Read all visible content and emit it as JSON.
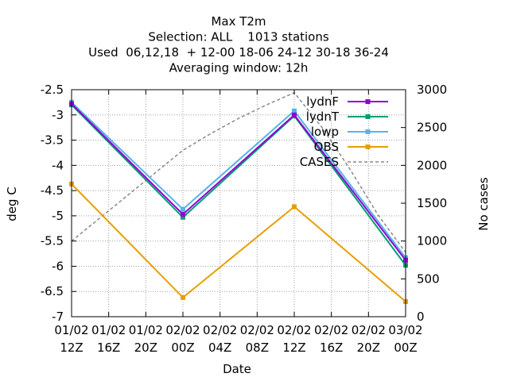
{
  "chart_data": {
    "type": "line",
    "title_lines": [
      "Max T2m",
      "Selection: ALL    1013 stations",
      "Used  06,12,18  + 12-00 18-06 24-12 30-18 36-24",
      "Averaging window: 12h"
    ],
    "xlabel": "Date",
    "ylabel": "deg C",
    "y2label": "No cases",
    "x_ticks": [
      {
        "h": 0,
        "top": "01/02",
        "bottom": "12Z"
      },
      {
        "h": 4,
        "top": "01/02",
        "bottom": "16Z"
      },
      {
        "h": 8,
        "top": "01/02",
        "bottom": "20Z"
      },
      {
        "h": 12,
        "top": "02/02",
        "bottom": "00Z"
      },
      {
        "h": 16,
        "top": "02/02",
        "bottom": "04Z"
      },
      {
        "h": 20,
        "top": "02/02",
        "bottom": "08Z"
      },
      {
        "h": 24,
        "top": "02/02",
        "bottom": "12Z"
      },
      {
        "h": 28,
        "top": "02/02",
        "bottom": "16Z"
      },
      {
        "h": 32,
        "top": "02/02",
        "bottom": "20Z"
      },
      {
        "h": 36,
        "top": "03/02",
        "bottom": "00Z"
      }
    ],
    "xlim": [
      0,
      36
    ],
    "ylim": [
      -7,
      -2.5
    ],
    "y_ticks": [
      -2.5,
      -3,
      -3.5,
      -4,
      -4.5,
      -5,
      -5.5,
      -6,
      -6.5,
      -7
    ],
    "y2lim": [
      0,
      3000
    ],
    "y2_ticks": [
      0,
      500,
      1000,
      1500,
      2000,
      2500,
      3000
    ],
    "grid": true,
    "legend_position": "top-right",
    "series": [
      {
        "name": "lydnF",
        "color": "#9400d3",
        "axis": "y1",
        "style": "solid",
        "marker": "square",
        "x": [
          0,
          12,
          24,
          36
        ],
        "y": [
          -2.78,
          -4.97,
          -3.0,
          -5.88
        ]
      },
      {
        "name": "lydnT",
        "color": "#009e73",
        "axis": "y1",
        "style": "solid",
        "marker": "square",
        "x": [
          0,
          12,
          24,
          36
        ],
        "y": [
          -2.8,
          -5.03,
          -3.02,
          -5.98
        ]
      },
      {
        "name": "lowp",
        "color": "#56b4e9",
        "axis": "y1",
        "style": "solid",
        "marker": "square",
        "x": [
          0,
          12,
          24,
          36
        ],
        "y": [
          -2.75,
          -4.87,
          -2.92,
          -5.83
        ]
      },
      {
        "name": "OBS",
        "color": "#e69f00",
        "axis": "y1",
        "style": "solid",
        "marker": "square",
        "x": [
          0,
          12,
          24,
          36
        ],
        "y": [
          -4.37,
          -6.62,
          -4.82,
          -6.7
        ]
      },
      {
        "name": "CASES",
        "color": "#888888",
        "axis": "y2",
        "style": "dashed",
        "marker": "none",
        "x": [
          0,
          3,
          6,
          9,
          12,
          15,
          18,
          21,
          24,
          27,
          30,
          33,
          36
        ],
        "y": [
          1000,
          1300,
          1600,
          1900,
          2200,
          2420,
          2620,
          2800,
          2960,
          2500,
          1950,
          1350,
          850
        ]
      }
    ]
  }
}
